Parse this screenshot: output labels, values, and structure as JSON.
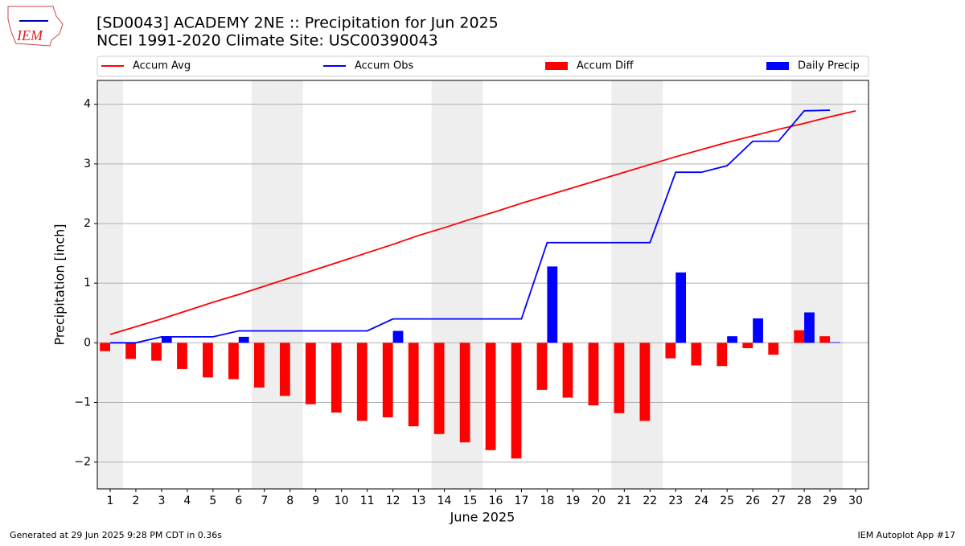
{
  "chart_data": {
    "type": "bar",
    "title": "[SD0043] ACADEMY 2NE :: Precipitation for Jun 2025",
    "subtitle": "NCEI 1991-2020 Climate Site: USC00390043",
    "logo_text": "IEM",
    "xlabel": "June 2025",
    "ylabel": "Precipitation [inch]",
    "footer_left": "Generated at 29 Jun 2025 9:28 PM CDT in 0.36s",
    "footer_right": "IEM Autoplot App #17",
    "x": [
      1,
      2,
      3,
      4,
      5,
      6,
      7,
      8,
      9,
      10,
      11,
      12,
      13,
      14,
      15,
      16,
      17,
      18,
      19,
      20,
      21,
      22,
      23,
      24,
      25,
      26,
      27,
      28,
      29,
      30
    ],
    "xlim": [
      0.5,
      30.5
    ],
    "xticks": [
      1,
      2,
      3,
      4,
      5,
      6,
      7,
      8,
      9,
      10,
      11,
      12,
      13,
      14,
      15,
      16,
      17,
      18,
      19,
      20,
      21,
      22,
      23,
      24,
      25,
      26,
      27,
      28,
      29,
      30
    ],
    "ylim": [
      -2.45,
      4.4
    ],
    "yticks": [
      {
        "value": -2,
        "label": "−2"
      },
      {
        "value": -1,
        "label": "−1"
      },
      0,
      1,
      2,
      3,
      4
    ],
    "grid": true,
    "shaded_days": [
      1,
      7,
      8,
      14,
      15,
      21,
      22,
      28,
      29
    ],
    "series": [
      {
        "name": "Accum Avg",
        "type": "line",
        "color": "#ff0000",
        "values": [
          0.14,
          0.27,
          0.4,
          0.54,
          0.68,
          0.81,
          0.95,
          1.09,
          1.23,
          1.37,
          1.51,
          1.65,
          1.8,
          1.93,
          2.07,
          2.2,
          2.34,
          2.47,
          2.6,
          2.73,
          2.86,
          2.99,
          3.12,
          3.24,
          3.36,
          3.47,
          3.58,
          3.68,
          3.79,
          3.89
        ]
      },
      {
        "name": "Accum Obs",
        "type": "line",
        "color": "#0000ff",
        "values": [
          0,
          0,
          0.1,
          0.1,
          0.1,
          0.2,
          0.2,
          0.2,
          0.2,
          0.2,
          0.2,
          0.4,
          0.4,
          0.4,
          0.4,
          0.4,
          0.4,
          1.68,
          1.68,
          1.68,
          1.68,
          1.68,
          2.86,
          2.86,
          2.97,
          3.38,
          3.38,
          3.89,
          3.9,
          null
        ]
      },
      {
        "name": "Accum Diff",
        "type": "bar",
        "color": "#ff0000",
        "values": [
          -0.14,
          -0.27,
          -0.3,
          -0.44,
          -0.58,
          -0.61,
          -0.75,
          -0.89,
          -1.03,
          -1.17,
          -1.31,
          -1.25,
          -1.4,
          -1.53,
          -1.67,
          -1.8,
          -1.94,
          -0.79,
          -0.92,
          -1.05,
          -1.18,
          -1.31,
          -0.26,
          -0.38,
          -0.39,
          -0.09,
          -0.2,
          0.21,
          0.11,
          null
        ]
      },
      {
        "name": "Daily Precip",
        "type": "bar",
        "color": "#0000ff",
        "values": [
          0,
          0,
          0.1,
          0,
          0,
          0.1,
          0,
          0,
          0,
          0,
          0,
          0.2,
          0,
          0,
          0,
          0,
          0,
          1.28,
          0,
          0,
          0,
          0,
          1.18,
          0,
          0.11,
          0.41,
          0,
          0.51,
          0.01,
          null
        ]
      }
    ]
  }
}
